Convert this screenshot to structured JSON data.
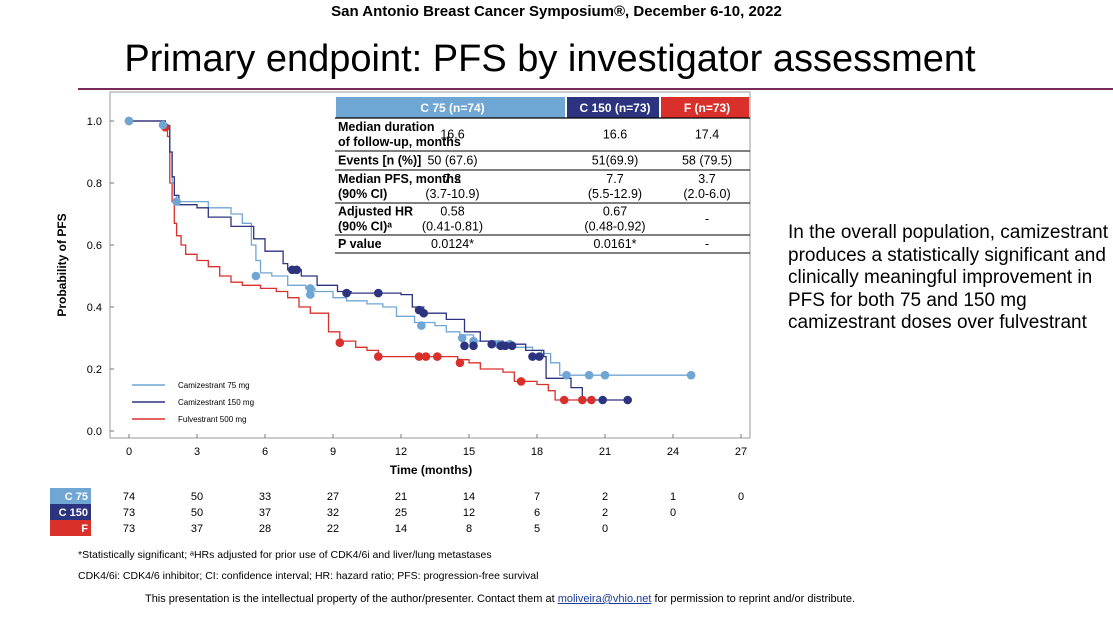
{
  "header": {
    "conference": "San Antonio Breast Cancer Symposium®, December 6-10, 2022",
    "title": "Primary endpoint: PFS by investigator assessment"
  },
  "side_text": "In the overall population, camizestrant produces a statistically significant and clinically meaningful improvement in PFS for both 75 and 150 mg camizestrant doses over fulvestrant",
  "footnotes": {
    "line1": "*Statistically significant; ᵃHRs adjusted for prior use of CDK4/6i and liver/lung metastases",
    "line2": "CDK4/6i: CDK4/6 inhibitor; CI: confidence interval; HR: hazard ratio; PFS: progression-free survival"
  },
  "footer": {
    "text_before": "This presentation is the intellectual property of the author/presenter. Contact them at ",
    "email": "moliveira@vhio.net",
    "text_after": " for permission to reprint and/or distribute."
  },
  "colors": {
    "c75": "#6fa6d4",
    "c150": "#2c3480",
    "f": "#d9302c",
    "rule": "#7a2a5a"
  },
  "results_table": {
    "columns": [
      "C 75 (n=74)",
      "C 150 (n=73)",
      "F (n=73)"
    ],
    "rows": [
      {
        "label": [
          "Median duration",
          "of follow-up, months"
        ],
        "values": [
          [
            "16.6"
          ],
          [
            "16.6"
          ],
          [
            "17.4"
          ]
        ]
      },
      {
        "label": [
          "Events [n (%)]"
        ],
        "values": [
          [
            "50 (67.6)"
          ],
          [
            "51(69.9)"
          ],
          [
            "58 (79.5)"
          ]
        ]
      },
      {
        "label": [
          "Median PFS, months",
          "(90% CI)"
        ],
        "values": [
          [
            "7.2",
            "(3.7-10.9)"
          ],
          [
            "7.7",
            "(5.5-12.9)"
          ],
          [
            "3.7",
            "(2.0-6.0)"
          ]
        ]
      },
      {
        "label": [
          "Adjusted HR",
          "(90% CI)ᵃ"
        ],
        "values": [
          [
            "0.58",
            "(0.41-0.81)"
          ],
          [
            "0.67",
            "(0.48-0.92)"
          ],
          [
            "-"
          ]
        ]
      },
      {
        "label": [
          "P value"
        ],
        "values": [
          [
            "0.0124*"
          ],
          [
            "0.0161*"
          ],
          [
            "-"
          ]
        ]
      }
    ]
  },
  "chart_data": {
    "type": "line",
    "xlabel": "Time (months)",
    "ylabel": "Probability of PFS",
    "xlim": [
      0,
      27
    ],
    "ylim": [
      0,
      1
    ],
    "x_ticks": [
      0,
      3,
      6,
      9,
      12,
      15,
      18,
      21,
      24,
      27
    ],
    "y_ticks": [
      0.0,
      0.2,
      0.4,
      0.6,
      0.8,
      1.0
    ],
    "y_tick_labels": [
      "0.0",
      "0.2",
      "0.4",
      "0.6",
      "0.8",
      "1.0"
    ],
    "legend_position": "bottom-left",
    "series": [
      {
        "name": "Camizestrant 75 mg",
        "key": "c75",
        "color": "#6fa6d4",
        "steps": [
          [
            0,
            1.0
          ],
          [
            1.4,
            1.0
          ],
          [
            1.5,
            0.987
          ],
          [
            1.7,
            0.973
          ],
          [
            1.8,
            0.9
          ],
          [
            1.9,
            0.8
          ],
          [
            2.0,
            0.76
          ],
          [
            2.1,
            0.74
          ],
          [
            3.0,
            0.74
          ],
          [
            3.5,
            0.72
          ],
          [
            4.5,
            0.7
          ],
          [
            5.0,
            0.67
          ],
          [
            5.4,
            0.6
          ],
          [
            5.6,
            0.55
          ],
          [
            5.8,
            0.51
          ],
          [
            6.3,
            0.5
          ],
          [
            7.0,
            0.47
          ],
          [
            7.8,
            0.46
          ],
          [
            8.2,
            0.45
          ],
          [
            9.0,
            0.43
          ],
          [
            9.6,
            0.42
          ],
          [
            10.5,
            0.41
          ],
          [
            11.2,
            0.4
          ],
          [
            11.8,
            0.37
          ],
          [
            12.6,
            0.35
          ],
          [
            13.5,
            0.34
          ],
          [
            14.0,
            0.32
          ],
          [
            14.6,
            0.31
          ],
          [
            15.2,
            0.29
          ],
          [
            16.2,
            0.28
          ],
          [
            17.0,
            0.27
          ],
          [
            17.8,
            0.26
          ],
          [
            18.2,
            0.25
          ],
          [
            18.6,
            0.22
          ],
          [
            19.0,
            0.18
          ],
          [
            24.8,
            0.18
          ]
        ],
        "censor": [
          [
            0,
            1.0
          ],
          [
            1.5,
            0.987
          ],
          [
            2.1,
            0.74
          ],
          [
            5.6,
            0.5
          ],
          [
            8.0,
            0.46
          ],
          [
            8.0,
            0.44
          ],
          [
            12.9,
            0.34
          ],
          [
            14.7,
            0.3
          ],
          [
            15.2,
            0.29
          ],
          [
            16.3,
            0.28
          ],
          [
            16.8,
            0.28
          ],
          [
            19.3,
            0.18
          ],
          [
            20.3,
            0.18
          ],
          [
            21.0,
            0.18
          ],
          [
            24.8,
            0.18
          ]
        ],
        "at_risk": [
          74,
          50,
          33,
          27,
          21,
          14,
          7,
          2,
          1,
          0
        ]
      },
      {
        "name": "Camizestrant 150 mg",
        "key": "c150",
        "color": "#2c3480",
        "steps": [
          [
            0,
            1.0
          ],
          [
            1.5,
            1.0
          ],
          [
            1.6,
            0.985
          ],
          [
            1.8,
            0.9
          ],
          [
            1.9,
            0.82
          ],
          [
            2.0,
            0.76
          ],
          [
            2.2,
            0.73
          ],
          [
            3.0,
            0.72
          ],
          [
            3.5,
            0.69
          ],
          [
            4.5,
            0.66
          ],
          [
            5.5,
            0.62
          ],
          [
            6.0,
            0.58
          ],
          [
            6.8,
            0.54
          ],
          [
            7.0,
            0.52
          ],
          [
            7.6,
            0.5
          ],
          [
            8.3,
            0.47
          ],
          [
            9.2,
            0.45
          ],
          [
            9.8,
            0.445
          ],
          [
            12.0,
            0.44
          ],
          [
            12.5,
            0.4
          ],
          [
            13.0,
            0.38
          ],
          [
            14.0,
            0.36
          ],
          [
            14.8,
            0.32
          ],
          [
            15.5,
            0.29
          ],
          [
            16.5,
            0.28
          ],
          [
            17.5,
            0.26
          ],
          [
            18.3,
            0.24
          ],
          [
            18.4,
            0.17
          ],
          [
            19.5,
            0.14
          ],
          [
            20.0,
            0.1
          ],
          [
            22.0,
            0.1
          ]
        ],
        "censor": [
          [
            7.2,
            0.52
          ],
          [
            7.4,
            0.52
          ],
          [
            9.6,
            0.445
          ],
          [
            11.0,
            0.445
          ],
          [
            12.8,
            0.39
          ],
          [
            13.0,
            0.38
          ],
          [
            14.8,
            0.275
          ],
          [
            15.2,
            0.275
          ],
          [
            16.0,
            0.28
          ],
          [
            16.4,
            0.275
          ],
          [
            16.6,
            0.275
          ],
          [
            16.9,
            0.275
          ],
          [
            17.8,
            0.24
          ],
          [
            18.1,
            0.24
          ],
          [
            20.9,
            0.1
          ],
          [
            22.0,
            0.1
          ]
        ],
        "at_risk": [
          73,
          50,
          37,
          32,
          25,
          12,
          6,
          2,
          0,
          null
        ]
      },
      {
        "name": "Fulvestrant 500 mg",
        "key": "f",
        "color": "#d9302c",
        "steps": [
          [
            0,
            1.0
          ],
          [
            1.5,
            1.0
          ],
          [
            1.6,
            0.98
          ],
          [
            1.7,
            0.95
          ],
          [
            1.8,
            0.8
          ],
          [
            1.9,
            0.74
          ],
          [
            2.0,
            0.67
          ],
          [
            2.1,
            0.63
          ],
          [
            2.3,
            0.6
          ],
          [
            2.5,
            0.57
          ],
          [
            3.0,
            0.55
          ],
          [
            3.5,
            0.53
          ],
          [
            4.0,
            0.5
          ],
          [
            4.5,
            0.48
          ],
          [
            5.0,
            0.47
          ],
          [
            5.8,
            0.46
          ],
          [
            6.5,
            0.45
          ],
          [
            7.0,
            0.43
          ],
          [
            7.5,
            0.4
          ],
          [
            8.0,
            0.38
          ],
          [
            8.8,
            0.32
          ],
          [
            9.3,
            0.29
          ],
          [
            10.0,
            0.27
          ],
          [
            10.5,
            0.26
          ],
          [
            11.0,
            0.24
          ],
          [
            14.5,
            0.23
          ],
          [
            15.0,
            0.22
          ],
          [
            15.5,
            0.2
          ],
          [
            16.5,
            0.19
          ],
          [
            17.0,
            0.16
          ],
          [
            18.0,
            0.15
          ],
          [
            18.5,
            0.13
          ],
          [
            18.8,
            0.1
          ],
          [
            20.5,
            0.1
          ]
        ],
        "censor": [
          [
            0,
            1.0
          ],
          [
            1.6,
            0.98
          ],
          [
            9.3,
            0.285
          ],
          [
            11.0,
            0.24
          ],
          [
            12.8,
            0.24
          ],
          [
            13.1,
            0.24
          ],
          [
            13.6,
            0.24
          ],
          [
            14.6,
            0.22
          ],
          [
            17.3,
            0.16
          ],
          [
            19.2,
            0.1
          ],
          [
            20.0,
            0.1
          ],
          [
            20.4,
            0.1
          ]
        ],
        "at_risk": [
          73,
          37,
          28,
          22,
          14,
          8,
          5,
          0,
          null,
          null
        ]
      }
    ],
    "at_risk_labels": [
      "C 75",
      "C 150",
      "F"
    ]
  }
}
